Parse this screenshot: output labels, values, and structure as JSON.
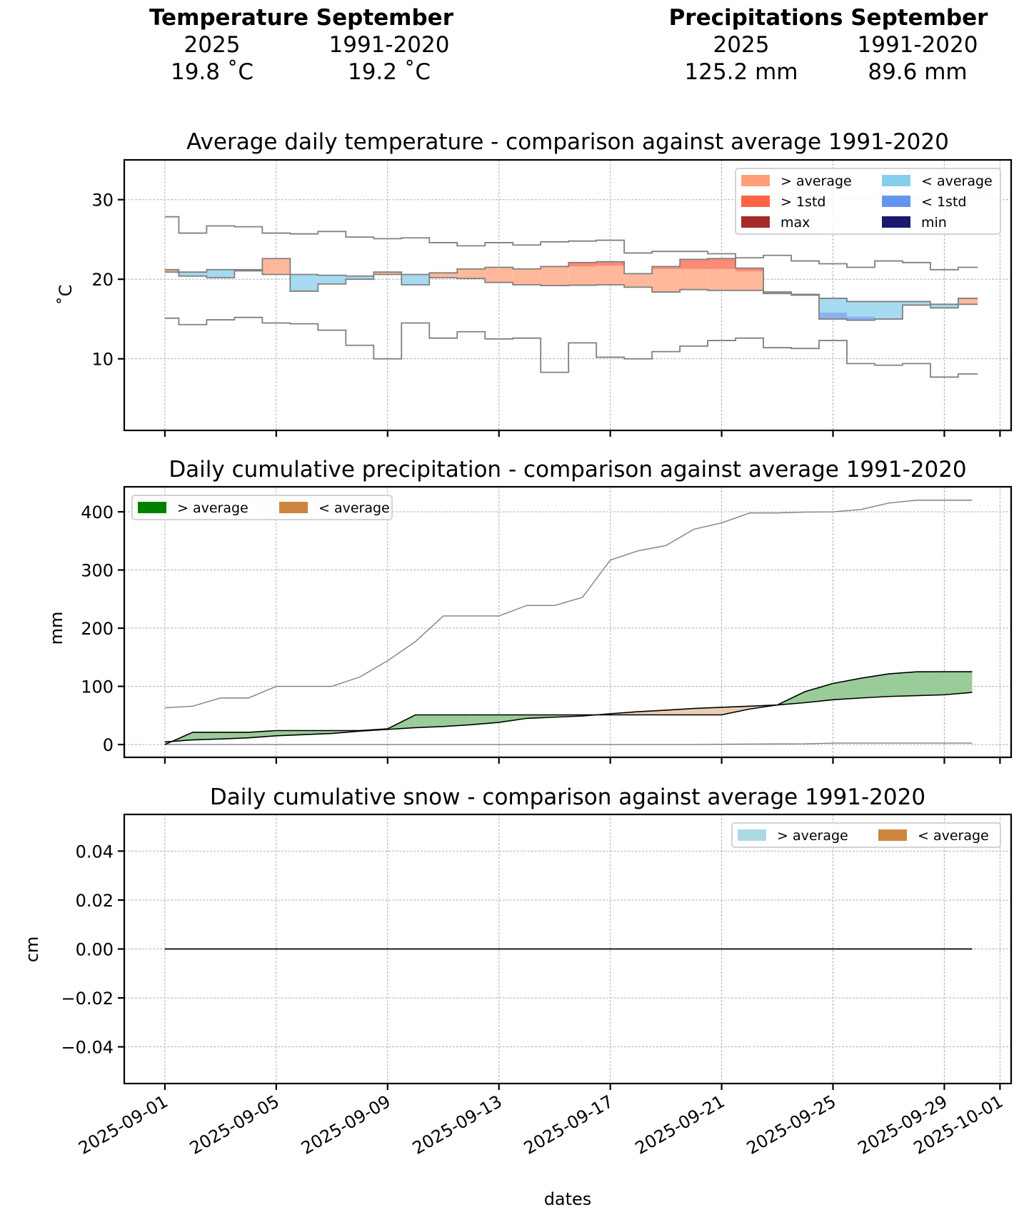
{
  "header": {
    "temperature": {
      "title": "Temperature September",
      "col_labels": [
        "2025",
        "1991-2020"
      ],
      "values": [
        "19.8 ˚C",
        "19.2 ˚C"
      ]
    },
    "precipitation": {
      "title": "Precipitations September",
      "col_labels": [
        "2025",
        "1991-2020"
      ],
      "values": [
        "125.2 mm",
        "89.6 mm"
      ]
    }
  },
  "x_axis": {
    "label": "dates",
    "start_date": "2025-09-01",
    "tick_labels": [
      "2025-09-01",
      "2025-09-05",
      "2025-09-09",
      "2025-09-13",
      "2025-09-17",
      "2025-09-21",
      "2025-09-25",
      "2025-09-29",
      "2025-10-01"
    ],
    "tick_days": [
      0,
      4,
      8,
      12,
      16,
      20,
      24,
      28,
      30
    ],
    "xlim_days": [
      -1.46,
      30.4
    ]
  },
  "colors": {
    "above_avg_temp": "#FFA07A",
    "above_1std_temp": "#FF6347",
    "max_temp": "#A52A2A",
    "below_avg_temp": "#87CEEB",
    "below_1std_temp": "#6495ED",
    "min_temp": "#191970",
    "above_avg_precip": "#008000",
    "below_avg_precip": "#CD853F",
    "above_avg_snow": "#ADD8E6",
    "below_avg_snow": "#CD853F",
    "envelope": "#808080"
  },
  "chart_data": [
    {
      "type": "area",
      "title": "Average daily temperature - comparison against average 1991-2020",
      "xlabel": "",
      "ylabel": "˚C",
      "ylim": [
        1,
        35
      ],
      "yticks": [
        10,
        20,
        30
      ],
      "grid": true,
      "step": "mid",
      "legend": {
        "placement": "top-right",
        "columns": 2,
        "entries": [
          {
            "label": "> average",
            "color_key": "above_avg_temp"
          },
          {
            "label": "< average",
            "color_key": "below_avg_temp"
          },
          {
            "label": "> 1std",
            "color_key": "above_1std_temp"
          },
          {
            "label": "< 1std",
            "color_key": "below_1std_temp"
          },
          {
            "label": "max",
            "color_key": "max_temp"
          },
          {
            "label": "min",
            "color_key": "min_temp"
          }
        ]
      },
      "x_days": [
        0,
        1,
        2,
        3,
        4,
        5,
        6,
        7,
        8,
        9,
        10,
        11,
        12,
        13,
        14,
        15,
        16,
        17,
        18,
        19,
        20,
        21,
        22,
        23,
        24,
        25,
        26,
        27,
        28,
        29
      ],
      "series": [
        {
          "name": "2025",
          "values": [
            21.2,
            20.4,
            20.2,
            21.2,
            22.6,
            18.5,
            19.4,
            20.0,
            20.9,
            19.3,
            20.8,
            21.3,
            21.5,
            21.3,
            21.6,
            22.1,
            22.2,
            20.7,
            21.6,
            22.5,
            22.6,
            21.4,
            18.4,
            18.0,
            15.0,
            14.85,
            15.0,
            16.75,
            16.4,
            17.6
          ]
        },
        {
          "name": "average 1991-2020",
          "values": [
            20.9,
            20.9,
            21.2,
            21.05,
            20.6,
            20.6,
            20.5,
            20.4,
            20.6,
            20.6,
            20.2,
            20.1,
            19.6,
            19.3,
            19.2,
            19.25,
            19.3,
            19.0,
            18.4,
            18.7,
            18.6,
            18.6,
            18.2,
            18.1,
            17.6,
            17.2,
            17.2,
            17.2,
            16.85,
            16.85
          ]
        },
        {
          "name": "average + 1std",
          "values": [
            23.0,
            23.0,
            23.3,
            23.1,
            22.7,
            22.7,
            22.6,
            22.5,
            22.7,
            22.7,
            22.3,
            22.2,
            21.8,
            21.6,
            21.5,
            21.6,
            21.7,
            21.6,
            21.3,
            21.3,
            21.3,
            21.0,
            20.8,
            20.7,
            20.3,
            19.9,
            19.9,
            19.9,
            19.6,
            19.6
          ]
        },
        {
          "name": "average - 1std",
          "values": [
            18.8,
            18.8,
            19.1,
            19.0,
            18.5,
            18.5,
            18.4,
            18.3,
            18.5,
            18.5,
            18.1,
            18.0,
            17.4,
            17.0,
            16.9,
            16.9,
            16.9,
            16.4,
            15.5,
            16.1,
            15.9,
            16.2,
            15.6,
            15.5,
            15.8,
            15.3,
            14.5,
            14.5,
            14.1,
            14.1
          ]
        },
        {
          "name": "max 1991-2020",
          "values": [
            27.85,
            25.8,
            26.7,
            26.6,
            25.8,
            25.7,
            26.0,
            25.3,
            25.1,
            25.2,
            24.6,
            24.2,
            24.6,
            24.3,
            24.7,
            24.8,
            24.9,
            23.3,
            23.5,
            23.5,
            23.2,
            22.7,
            23.0,
            22.3,
            21.95,
            21.5,
            22.3,
            22.1,
            21.2,
            21.5
          ]
        },
        {
          "name": "min 1991-2020",
          "values": [
            15.1,
            14.3,
            14.9,
            15.2,
            14.5,
            14.4,
            13.6,
            11.7,
            10.0,
            14.5,
            12.6,
            13.4,
            12.5,
            12.6,
            8.3,
            12.0,
            10.2,
            10.0,
            10.9,
            11.6,
            12.3,
            12.6,
            11.4,
            11.3,
            12.3,
            9.4,
            9.2,
            9.4,
            7.7,
            8.1
          ]
        }
      ]
    },
    {
      "type": "area",
      "title": "Daily cumulative precipitation - comparison against average 1991-2020",
      "xlabel": "",
      "ylabel": "mm",
      "ylim": [
        -22,
        443
      ],
      "yticks": [
        0,
        100,
        200,
        300,
        400
      ],
      "grid": true,
      "legend": {
        "placement": "top-left",
        "columns": 2,
        "entries": [
          {
            "label": "> average",
            "color_key": "above_avg_precip"
          },
          {
            "label": "< average",
            "color_key": "below_avg_precip"
          }
        ]
      },
      "x_days": [
        0,
        1,
        2,
        3,
        4,
        5,
        6,
        7,
        8,
        9,
        10,
        11,
        12,
        13,
        14,
        15,
        16,
        17,
        18,
        19,
        20,
        21,
        22,
        23,
        24,
        25,
        26,
        27,
        28,
        29
      ],
      "series": [
        {
          "name": "2025",
          "values": [
            0,
            21,
            21,
            21,
            24,
            24,
            24,
            24,
            27,
            51,
            51,
            51,
            51,
            51,
            51,
            51,
            51,
            51,
            51,
            51,
            51,
            61,
            68,
            91,
            105,
            114,
            121.5,
            125,
            125.2,
            125.2
          ]
        },
        {
          "name": "average 1991-2020",
          "values": [
            4.5,
            8,
            9.5,
            11.5,
            15,
            17,
            19,
            23,
            26,
            29,
            31,
            34,
            38,
            45,
            47,
            49,
            53,
            56.5,
            59,
            62,
            64,
            66,
            68,
            72,
            77,
            80,
            82.6,
            84,
            85.5,
            89.6
          ]
        },
        {
          "name": "max 1991-2020",
          "values": [
            63,
            66,
            80,
            80,
            100,
            100,
            100,
            116,
            144,
            177,
            221,
            221,
            221,
            239,
            239,
            253,
            317,
            333,
            342,
            370,
            381,
            398,
            398,
            399.5,
            400,
            404,
            415,
            420,
            420,
            420
          ]
        },
        {
          "name": "min 1991-2020",
          "values": [
            0,
            0,
            0,
            0,
            0,
            0,
            0,
            0,
            0,
            0,
            0,
            0,
            0,
            0,
            0,
            0,
            0,
            0,
            0,
            0,
            0.5,
            0.8,
            1,
            1.2,
            2.5,
            2.5,
            2.5,
            2.5,
            2.5,
            2.5
          ]
        }
      ]
    },
    {
      "type": "line",
      "title": "Daily cumulative snow - comparison against average 1991-2020",
      "xlabel": "dates",
      "ylabel": "cm",
      "ylim": [
        -0.055,
        0.055
      ],
      "yticks": [
        -0.04,
        -0.02,
        0.0,
        0.02,
        0.04
      ],
      "ytick_labels": [
        "−0.04",
        "−0.02",
        "0.00",
        "0.02",
        "0.04"
      ],
      "grid": true,
      "legend": {
        "placement": "top-right",
        "columns": 2,
        "entries": [
          {
            "label": "> average",
            "color_key": "above_avg_snow"
          },
          {
            "label": "< average",
            "color_key": "below_avg_snow"
          }
        ]
      },
      "x_days": [
        0,
        1,
        2,
        3,
        4,
        5,
        6,
        7,
        8,
        9,
        10,
        11,
        12,
        13,
        14,
        15,
        16,
        17,
        18,
        19,
        20,
        21,
        22,
        23,
        24,
        25,
        26,
        27,
        28,
        29
      ],
      "series": [
        {
          "name": "2025",
          "values": [
            0,
            0,
            0,
            0,
            0,
            0,
            0,
            0,
            0,
            0,
            0,
            0,
            0,
            0,
            0,
            0,
            0,
            0,
            0,
            0,
            0,
            0,
            0,
            0,
            0,
            0,
            0,
            0,
            0,
            0
          ]
        },
        {
          "name": "average 1991-2020",
          "values": [
            0,
            0,
            0,
            0,
            0,
            0,
            0,
            0,
            0,
            0,
            0,
            0,
            0,
            0,
            0,
            0,
            0,
            0,
            0,
            0,
            0,
            0,
            0,
            0,
            0,
            0,
            0,
            0,
            0,
            0
          ]
        }
      ]
    }
  ]
}
